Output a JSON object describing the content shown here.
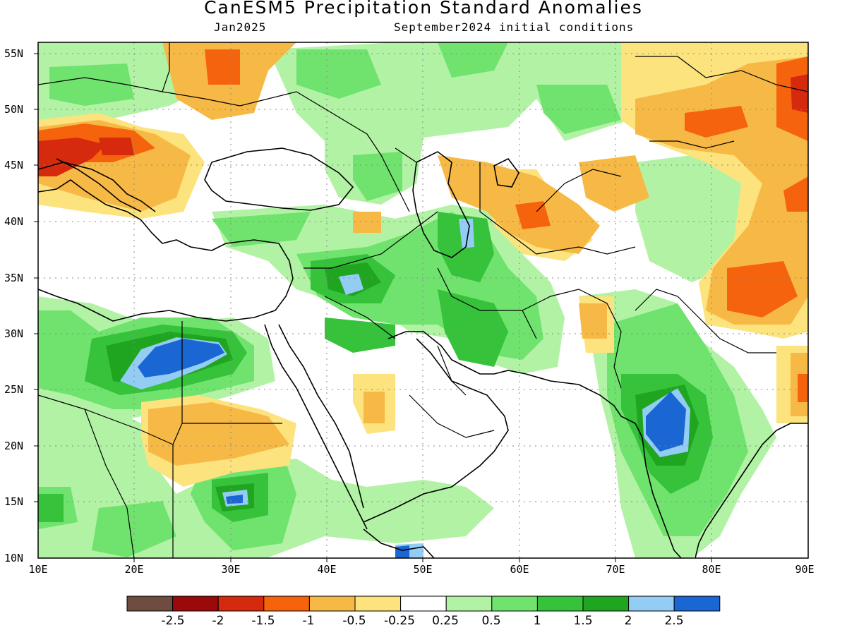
{
  "title": "CanESM5 Precipitation Standard Anomalies",
  "subtitle_left": "Jan2025",
  "subtitle_right": "September2024 initial conditions",
  "lat_ticks": [
    "55N",
    "50N",
    "45N",
    "40N",
    "35N",
    "30N",
    "25N",
    "20N",
    "15N",
    "10N"
  ],
  "lon_ticks": [
    "10E",
    "20E",
    "30E",
    "40E",
    "50E",
    "60E",
    "70E",
    "80E",
    "90E"
  ],
  "legend": {
    "colors": [
      "#6e4c3f",
      "#9a0a0a",
      "#d52a0d",
      "#f5640c",
      "#f7b946",
      "#fce37e",
      "#ffffff",
      "#b2f2a4",
      "#6fe36e",
      "#36c23a",
      "#1fa51f",
      "#94cdf4",
      "#1a66d3"
    ],
    "labels": [
      "-2.5",
      "-2",
      "-1.5",
      "-1",
      "-0.5",
      "-0.25",
      "0.25",
      "0.5",
      "1",
      "1.5",
      "2",
      "2.5"
    ]
  },
  "colors": {
    "frame": "#000000",
    "grid": "#888888"
  }
}
